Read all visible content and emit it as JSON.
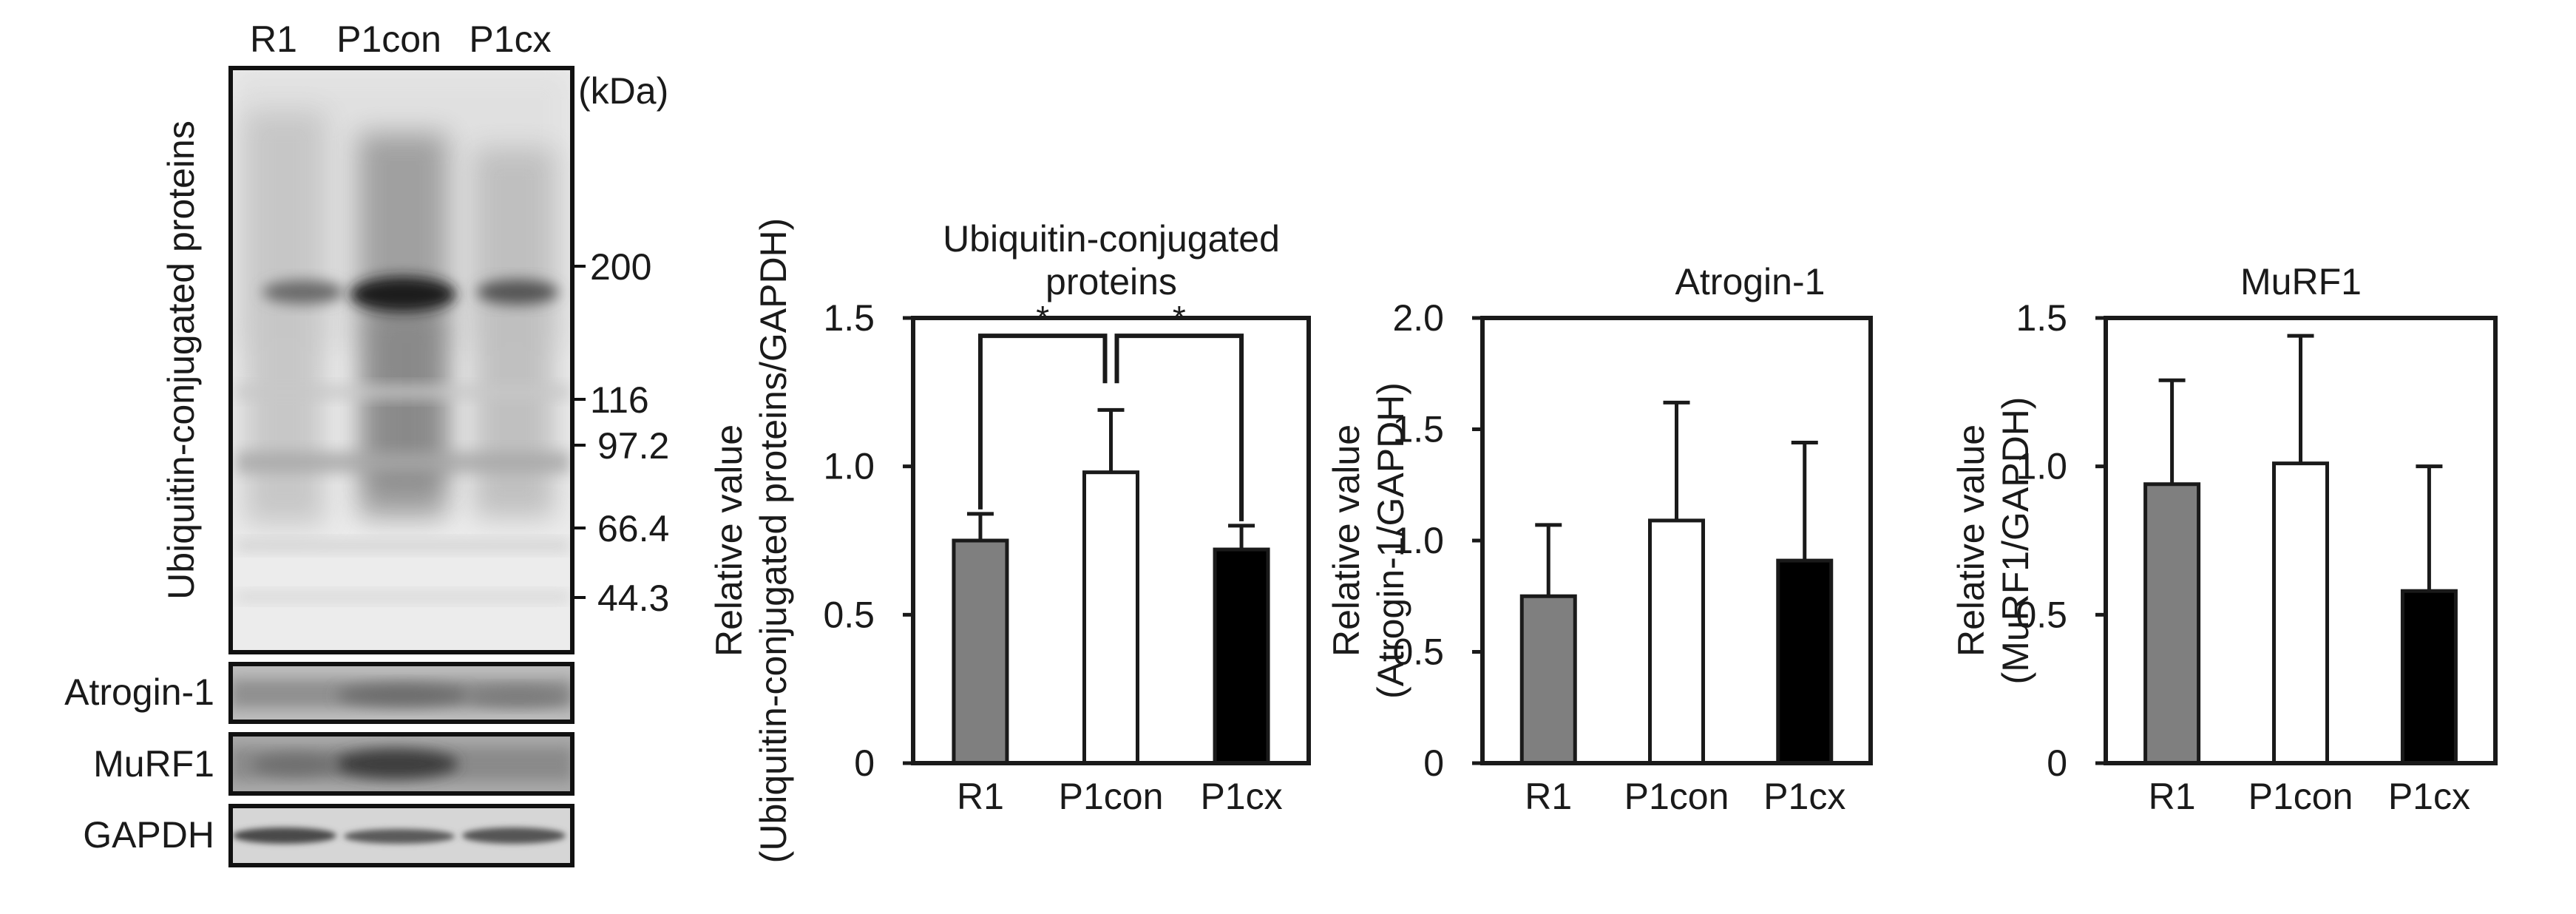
{
  "blot": {
    "lanes": [
      "R1",
      "P1con",
      "P1cx"
    ],
    "main_label": "Ubiquitin-conjugated proteins",
    "kda_unit": "(kDa)",
    "markers": [
      "200",
      "116",
      "97.2",
      "66.4",
      "44.3"
    ],
    "strip_labels": [
      "Atrogin-1",
      "MuRF1",
      "GAPDH"
    ]
  },
  "colors": {
    "R1": "#7f7f7f",
    "P1con": "#ffffff",
    "P1cx": "#000000",
    "frame": "#1a1a1a"
  },
  "chart_data": [
    {
      "type": "bar",
      "title": [
        "Ubiquitin-conjugated",
        "proteins"
      ],
      "ylabel": [
        "Relative value",
        "(Ubiquitin-conjugated proteins/GAPDH)"
      ],
      "categories": [
        "R1",
        "P1con",
        "P1cx"
      ],
      "values": [
        0.75,
        0.98,
        0.72
      ],
      "errors": [
        0.09,
        0.21,
        0.08
      ],
      "ylim": [
        0,
        1.5
      ],
      "yticks": [
        "0",
        "0.5",
        "1.0",
        "1.5"
      ],
      "tick_values": [
        0,
        0.5,
        1.0,
        1.5
      ],
      "significance": [
        {
          "from": 0,
          "to": 1,
          "label": "*"
        },
        {
          "from": 2,
          "to": 1,
          "label": "*"
        }
      ]
    },
    {
      "type": "bar",
      "title": [
        "Atrogin-1"
      ],
      "ylabel": [
        "Relative value",
        "(Atrogin-1/GAPDH)"
      ],
      "categories": [
        "R1",
        "P1con",
        "P1cx"
      ],
      "values": [
        0.75,
        1.09,
        0.91
      ],
      "errors": [
        0.32,
        0.53,
        0.53
      ],
      "ylim": [
        0,
        2.0
      ],
      "yticks": [
        "0",
        "0.5",
        "1.0",
        "1.5",
        "2.0"
      ],
      "tick_values": [
        0,
        0.5,
        1.0,
        1.5,
        2.0
      ],
      "significance": []
    },
    {
      "type": "bar",
      "title": [
        "MuRF1"
      ],
      "ylabel": [
        "Relative value",
        "(MuRF1/GAPDH)"
      ],
      "categories": [
        "R1",
        "P1con",
        "P1cx"
      ],
      "values": [
        0.94,
        1.01,
        0.58
      ],
      "errors": [
        0.35,
        0.43,
        0.42
      ],
      "ylim": [
        0,
        1.5
      ],
      "yticks": [
        "0",
        "0.5",
        "1.0",
        "1.5"
      ],
      "tick_values": [
        0,
        0.5,
        1.0,
        1.5
      ],
      "significance": []
    }
  ]
}
